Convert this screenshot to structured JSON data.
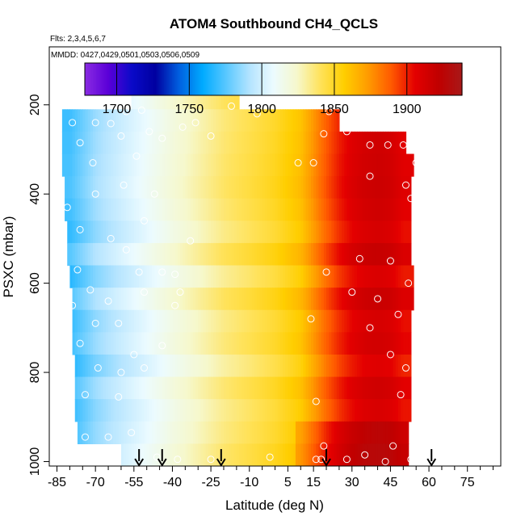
{
  "chart_data": {
    "type": "heatmap",
    "title": "ATOM4 Southbound CH4_QCLS",
    "subtitle_flights": "Flts: 2,3,4,5,6,7",
    "subtitle_dates": "MMDD: 0427,0429,0501,0503,0506,0509",
    "xlabel": "Latitude (deg N)",
    "ylabel": "PSXC (mbar)",
    "xlim": [
      -88,
      88
    ],
    "ylim": [
      1010,
      70
    ],
    "x_ticks": [
      -85,
      -70,
      -55,
      -40,
      -25,
      -10,
      5,
      15,
      30,
      45,
      60,
      75
    ],
    "x_tick_labels": [
      "-85",
      "-70",
      "-55",
      "-40",
      "-25",
      "-10",
      "5",
      "15",
      "30",
      "45",
      "60",
      "75"
    ],
    "x_minor_ticks": [
      -80,
      -75,
      -65,
      -60,
      -50,
      -45,
      -35,
      -30,
      -20,
      -15,
      -5,
      0,
      10,
      20,
      25,
      35,
      40,
      50,
      55,
      65,
      70,
      80,
      85
    ],
    "y_ticks": [
      200,
      400,
      600,
      800,
      1000
    ],
    "y_tick_labels": [
      "200",
      "400",
      "600",
      "800",
      "1000"
    ],
    "colorbar": {
      "range": [
        1678,
        1938
      ],
      "ticks": [
        1700,
        1750,
        1800,
        1850,
        1900
      ],
      "tick_labels": [
        "1700",
        "1750",
        "1800",
        "1850",
        "1900"
      ],
      "colors": [
        "#8a2be2",
        "#5a00d8",
        "#0a0ac8",
        "#0000a0",
        "#0060e0",
        "#00aaff",
        "#59c8ff",
        "#b4e4ff",
        "#ecfbff",
        "#f6f8cc",
        "#ffe25a",
        "#ffce00",
        "#ff9c00",
        "#ff5a00",
        "#e40000",
        "#c00000",
        "#a81818"
      ]
    },
    "profile_latitudes": [
      -53,
      -44,
      -21,
      20,
      61
    ],
    "pressure_levels": [
      185,
      235,
      285,
      335,
      385,
      435,
      485,
      535,
      585,
      635,
      685,
      735,
      785,
      835,
      885,
      935,
      985
    ],
    "lat_coverage": [
      [
        -56,
        -14
      ],
      [
        -83,
        25
      ],
      [
        -83,
        51
      ],
      [
        -83,
        54
      ],
      [
        -82,
        53
      ],
      [
        -82,
        53
      ],
      [
        -81,
        53
      ],
      [
        -81,
        53
      ],
      [
        -80,
        54
      ],
      [
        -79,
        54
      ],
      [
        -79,
        53
      ],
      [
        -79,
        53
      ],
      [
        -78,
        53
      ],
      [
        -78,
        53
      ],
      [
        -78,
        53
      ],
      [
        -77,
        52
      ],
      [
        -60,
        52
      ]
    ],
    "anchor_lats": [
      -80,
      -70,
      -60,
      -50,
      -40,
      -30,
      -20,
      -10,
      0,
      10,
      15,
      20,
      25,
      30,
      35,
      40,
      45,
      50
    ],
    "anchor_values": [
      1768,
      1785,
      1796,
      1806,
      1816,
      1825,
      1834,
      1840,
      1847,
      1858,
      1872,
      1886,
      1897,
      1905,
      1910,
      1912,
      1910,
      1903
    ],
    "row_offsets": [
      6,
      2,
      3,
      4,
      5,
      3,
      0,
      7,
      -2,
      6,
      0,
      2,
      -4,
      3,
      -1,
      1,
      4
    ],
    "points": [
      {
        "lat": -79,
        "p": 240
      },
      {
        "lat": -70,
        "p": 240
      },
      {
        "lat": -64,
        "p": 242
      },
      {
        "lat": -58,
        "p": 215
      },
      {
        "lat": -52,
        "p": 212
      },
      {
        "lat": -31,
        "p": 240
      },
      {
        "lat": -17,
        "p": 203
      },
      {
        "lat": -7,
        "p": 220
      },
      {
        "lat": 21,
        "p": 215
      },
      {
        "lat": -76,
        "p": 285
      },
      {
        "lat": -60,
        "p": 270
      },
      {
        "lat": -49,
        "p": 260
      },
      {
        "lat": -44,
        "p": 275
      },
      {
        "lat": -36,
        "p": 250
      },
      {
        "lat": -25,
        "p": 270
      },
      {
        "lat": 19,
        "p": 265
      },
      {
        "lat": 28,
        "p": 260
      },
      {
        "lat": 37,
        "p": 290
      },
      {
        "lat": 44,
        "p": 290
      },
      {
        "lat": 50,
        "p": 290
      },
      {
        "lat": -71,
        "p": 330
      },
      {
        "lat": -54,
        "p": 315
      },
      {
        "lat": 9,
        "p": 330
      },
      {
        "lat": 15,
        "p": 330
      },
      {
        "lat": 37,
        "p": 360
      },
      {
        "lat": 51,
        "p": 380
      },
      {
        "lat": 55,
        "p": 330
      },
      {
        "lat": -70,
        "p": 400
      },
      {
        "lat": -59,
        "p": 380
      },
      {
        "lat": -47,
        "p": 400
      },
      {
        "lat": -81,
        "p": 430
      },
      {
        "lat": -51,
        "p": 460
      },
      {
        "lat": 53,
        "p": 410
      },
      {
        "lat": -76,
        "p": 480
      },
      {
        "lat": -64,
        "p": 500
      },
      {
        "lat": -58,
        "p": 525
      },
      {
        "lat": -33,
        "p": 505
      },
      {
        "lat": 33,
        "p": 545
      },
      {
        "lat": 45,
        "p": 550
      },
      {
        "lat": -77,
        "p": 570
      },
      {
        "lat": -53,
        "p": 575
      },
      {
        "lat": -44,
        "p": 575
      },
      {
        "lat": -39,
        "p": 580
      },
      {
        "lat": 20,
        "p": 575
      },
      {
        "lat": 52,
        "p": 600
      },
      {
        "lat": -72,
        "p": 615
      },
      {
        "lat": -51,
        "p": 620
      },
      {
        "lat": -37,
        "p": 620
      },
      {
        "lat": 30,
        "p": 620
      },
      {
        "lat": -79,
        "p": 650
      },
      {
        "lat": -65,
        "p": 640
      },
      {
        "lat": -39,
        "p": 650
      },
      {
        "lat": 40,
        "p": 635
      },
      {
        "lat": -70,
        "p": 690
      },
      {
        "lat": -61,
        "p": 690
      },
      {
        "lat": 14,
        "p": 680
      },
      {
        "lat": 37,
        "p": 700
      },
      {
        "lat": 48,
        "p": 670
      },
      {
        "lat": -76,
        "p": 735
      },
      {
        "lat": -55,
        "p": 760
      },
      {
        "lat": -44,
        "p": 740
      },
      {
        "lat": 45,
        "p": 760
      },
      {
        "lat": -69,
        "p": 790
      },
      {
        "lat": -60,
        "p": 800
      },
      {
        "lat": -51,
        "p": 790
      },
      {
        "lat": 51,
        "p": 790
      },
      {
        "lat": -74,
        "p": 850
      },
      {
        "lat": -61,
        "p": 855
      },
      {
        "lat": 16,
        "p": 865
      },
      {
        "lat": 49,
        "p": 850
      },
      {
        "lat": -74,
        "p": 945
      },
      {
        "lat": -65,
        "p": 945
      },
      {
        "lat": -56,
        "p": 935
      },
      {
        "lat": 19,
        "p": 965
      },
      {
        "lat": 46,
        "p": 965
      },
      {
        "lat": -63,
        "p": 975
      },
      {
        "lat": -46,
        "p": 990
      },
      {
        "lat": -38,
        "p": 995
      },
      {
        "lat": -25,
        "p": 995
      },
      {
        "lat": -2,
        "p": 990
      },
      {
        "lat": 16,
        "p": 995
      },
      {
        "lat": 18,
        "p": 995
      },
      {
        "lat": 28,
        "p": 995
      },
      {
        "lat": 35,
        "p": 985
      },
      {
        "lat": 43,
        "p": 1000
      },
      {
        "lat": 53,
        "p": 995
      }
    ]
  }
}
